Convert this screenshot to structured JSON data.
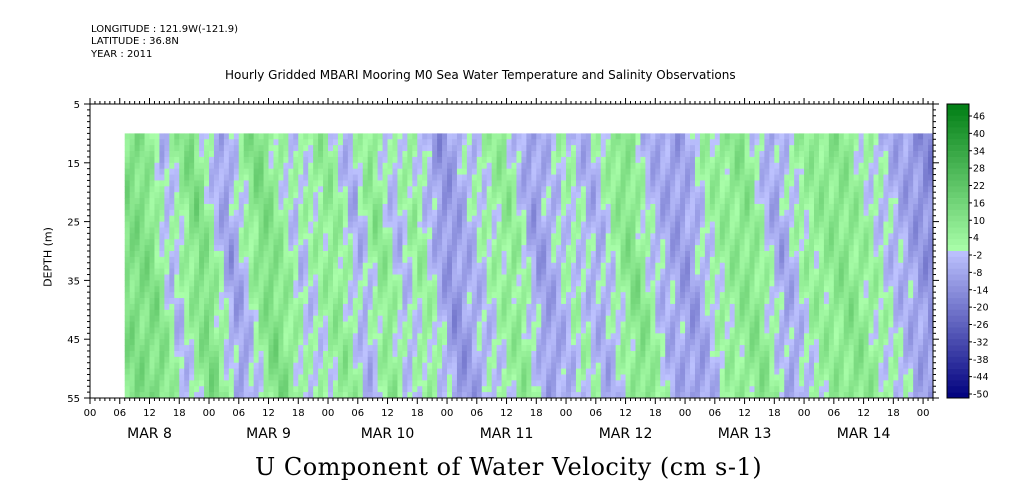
{
  "header": {
    "longitude": "LONGITUDE : 121.9W(-121.9)",
    "latitude": "LATITUDE : 36.8N",
    "year": "YEAR : 2011"
  },
  "chart_data": {
    "type": "heatmap",
    "title": "Hourly Gridded MBARI Mooring M0 Sea Water Temperature and Salinity Observations",
    "xlabel": "U Component of Water Velocity (cm s-1)",
    "ylabel": "DEPTH (m)",
    "y_axis": {
      "range": [
        5,
        55
      ],
      "inverted": true,
      "ticks": [
        5,
        15,
        25,
        35,
        45,
        55
      ]
    },
    "x_axis": {
      "range_hours": [
        0,
        170
      ],
      "hour_ticks": [
        "00",
        "06",
        "12",
        "18",
        "00",
        "06",
        "12",
        "18",
        "00",
        "06",
        "12",
        "18",
        "00",
        "06",
        "12",
        "18",
        "00",
        "06",
        "12",
        "18",
        "00",
        "06",
        "12",
        "18",
        "00",
        "06",
        "12",
        "18",
        "00"
      ],
      "day_labels": [
        "MAR 8",
        "MAR 9",
        "MAR 10",
        "MAR 11",
        "MAR 12",
        "MAR 13",
        "MAR 14"
      ]
    },
    "data_extent": {
      "start_hour": 7,
      "end_hour": 170,
      "depth_top": 10,
      "depth_bottom": 55
    },
    "colorbar": {
      "min": -50,
      "max": 50,
      "labels": [
        "46",
        "40",
        "34",
        "28",
        "22",
        "16",
        "10",
        "4",
        "-2",
        "-8",
        "-14",
        "-20",
        "-26",
        "-32",
        "-38",
        "-44",
        "-50"
      ]
    },
    "bands": [
      {
        "hour": 10,
        "value": 12
      },
      {
        "hour": 14,
        "value": -4
      },
      {
        "hour": 20,
        "value": 14
      },
      {
        "hour": 26,
        "value": -10
      },
      {
        "hour": 33,
        "value": 14
      },
      {
        "hour": 40,
        "value": -2
      },
      {
        "hour": 47,
        "value": 8
      },
      {
        "hour": 52,
        "value": -6
      },
      {
        "hour": 56,
        "value": 10
      },
      {
        "hour": 60,
        "value": -4
      },
      {
        "hour": 64,
        "value": 6
      },
      {
        "hour": 70,
        "value": -12
      },
      {
        "hour": 76,
        "value": -2
      },
      {
        "hour": 83,
        "value": 8
      },
      {
        "hour": 88,
        "value": -10
      },
      {
        "hour": 95,
        "value": 2
      },
      {
        "hour": 100,
        "value": -6
      },
      {
        "hour": 107,
        "value": 12
      },
      {
        "hour": 112,
        "value": -4
      },
      {
        "hour": 118,
        "value": -10
      },
      {
        "hour": 124,
        "value": 4
      },
      {
        "hour": 131,
        "value": 10
      },
      {
        "hour": 137,
        "value": -8
      },
      {
        "hour": 142,
        "value": 4
      },
      {
        "hour": 150,
        "value": 10
      },
      {
        "hour": 156,
        "value": 2
      },
      {
        "hour": 162,
        "value": -6
      },
      {
        "hour": 168,
        "value": -14
      }
    ]
  }
}
